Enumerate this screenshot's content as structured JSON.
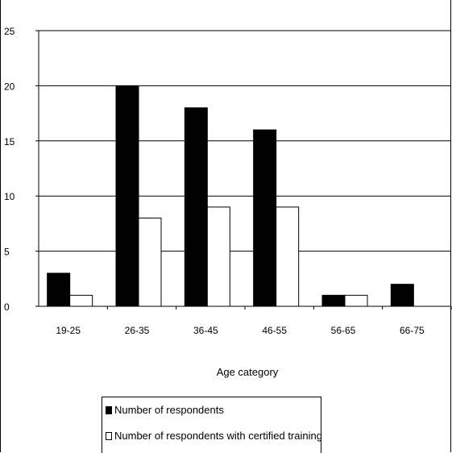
{
  "chart_data": {
    "type": "bar",
    "categories": [
      "19-25",
      "26-35",
      "36-45",
      "46-55",
      "56-65",
      "66-75"
    ],
    "series": [
      {
        "name": "Number of respondents",
        "values": [
          3,
          20,
          18,
          16,
          1,
          2
        ],
        "color": "#000000"
      },
      {
        "name": "Number of respondents with certified training",
        "values": [
          1,
          8,
          9,
          9,
          1,
          0
        ],
        "color": "#ffffff"
      }
    ],
    "title": "",
    "xlabel": "Age category",
    "ylabel": "",
    "ylim": [
      0,
      25
    ],
    "yticks": [
      0,
      5,
      10,
      15,
      20,
      25
    ],
    "grid": true,
    "legend_position": "bottom"
  }
}
